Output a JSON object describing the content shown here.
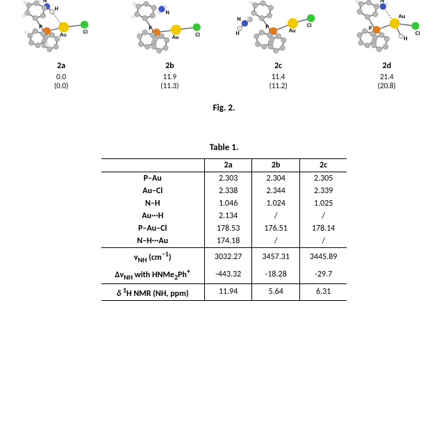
{
  "figures": {
    "caption": "Fig. 2.",
    "items": [
      {
        "label": "2a",
        "val1": "0.0",
        "val2": "(0.0)"
      },
      {
        "label": "2b",
        "val1": "11.9",
        "val2": "(11.3)"
      },
      {
        "label": "2c",
        "val1": "11.4",
        "val2": "(11.2)"
      },
      {
        "label": "2d",
        "val1": "21.4",
        "val2": "(20.8)"
      }
    ],
    "atom_labels": {
      "2a": [
        "N",
        "H",
        "P",
        "Au",
        "Cl"
      ],
      "2b": [
        "N",
        "P",
        "Au",
        "Cl"
      ],
      "2c": [
        "N",
        "H",
        "P",
        "Au",
        "Cl"
      ],
      "2d": [
        "N",
        "Au",
        "P",
        "Cl",
        "H"
      ]
    },
    "colors": {
      "carbon": "#b7b7b7",
      "carbon_stroke": "#6d6d6d",
      "hydrogen": "#e8e8e8",
      "nitrogen": "#3d55c9",
      "phosphorus": "#e37a1f",
      "gold": "#f0c800",
      "chlorine": "#34c934",
      "bond": "#6b6b6b",
      "dashed_bond": "#888888",
      "background": "#ffffff"
    }
  },
  "table": {
    "caption": "Table 1.",
    "columns": [
      "",
      "2a",
      "2b",
      "2c"
    ],
    "rows": [
      {
        "head": "P–Au",
        "cells": [
          "2.303",
          "2.304",
          "2.305"
        ]
      },
      {
        "head": "Au–Cl",
        "cells": [
          "2.338",
          "2.344",
          "2.339"
        ]
      },
      {
        "head": "N–H",
        "cells": [
          "1.046",
          "1.024",
          "1.025"
        ]
      },
      {
        "head": "Au···H",
        "cells": [
          "2.134",
          "/",
          "/"
        ]
      },
      {
        "head": "P–Au–Cl",
        "cells": [
          "178.53",
          "176.51",
          "178.14"
        ]
      },
      {
        "head": "N–H···Au",
        "cells": [
          "174.18",
          "/",
          "/"
        ]
      }
    ],
    "rows2": [
      {
        "head_html": "ν<sub>NH</sub> (cm<sup>−1</sup>)",
        "cells": [
          "3032.27",
          "3457.31",
          "3445.89"
        ]
      },
      {
        "head_html": "Δν<sub>NH</sub> with HNMe<sub>2</sub>Ph<sup>+</sup>",
        "cells": [
          "-443.32",
          "-18.28",
          "-29.7"
        ]
      }
    ],
    "rows3": [
      {
        "head_html": "<i>δ</i> <sup>1</sup>H NMR (NH, ppm)",
        "cells": [
          "11.94",
          "5.64",
          "6.31"
        ]
      }
    ]
  }
}
